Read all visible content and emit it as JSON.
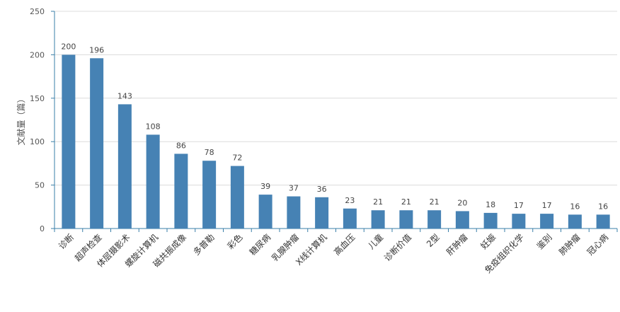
{
  "chart_data": {
    "type": "bar",
    "ylabel": "文献量（篇）",
    "xlabel": "",
    "title": "",
    "ylim": [
      0,
      250
    ],
    "yticks": [
      0,
      50,
      100,
      150,
      200,
      250
    ],
    "grid": true,
    "bar_color": "#4682b4",
    "categories": [
      "诊断",
      "超声检查",
      "体层摄影术",
      "螺旋计算机",
      "磁共振成像",
      "多普勒",
      "彩色",
      "糖尿病",
      "乳腺肿瘤",
      "X线计算机",
      "高血压",
      "儿童",
      "诊断价值",
      "2型",
      "肝肿瘤",
      "妊娠",
      "免疫组织化学",
      "鉴别",
      "肺肿瘤",
      "冠心病"
    ],
    "values": [
      200,
      196,
      143,
      108,
      86,
      78,
      72,
      39,
      37,
      36,
      23,
      21,
      21,
      21,
      20,
      18,
      17,
      17,
      16,
      16
    ]
  }
}
